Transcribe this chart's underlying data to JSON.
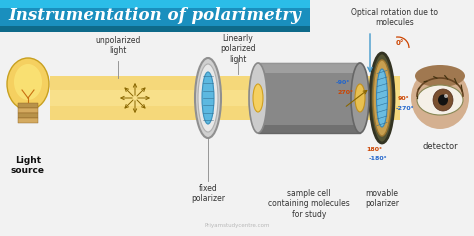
{
  "title": "Instrumentation of polarimetry",
  "title_bg_top": "#2aaad4",
  "title_bg_bot": "#1478a0",
  "title_color": "#ffffff",
  "bg_color": "#f2f2f2",
  "beam_color": "#f5d87a",
  "watermark": "Priyamstudycentre.com",
  "labels": {
    "light_source": "Light\nsource",
    "unpolarized": "unpolarized\nlight",
    "fixed_polarizer": "fixed\npolarizer",
    "linearly_polarized": "Linearly\npolarized\nlight",
    "sample_cell": "sample cell\ncontaining molecules\nfor study",
    "optical_rotation": "Optical rotation due to\nmolecules",
    "movable_polarizer": "movable\npolarizer",
    "detector": "detector"
  },
  "angles": {
    "0": {
      "text": "0°",
      "color": "#cc4400"
    },
    "-90": {
      "text": "-90°",
      "color": "#2266cc"
    },
    "270": {
      "text": "270°",
      "color": "#cc4400"
    },
    "90": {
      "text": "90°",
      "color": "#cc4400"
    },
    "-270": {
      "text": "-270°",
      "color": "#2266cc"
    },
    "180": {
      "text": "180°",
      "color": "#cc4400"
    },
    "-180": {
      "text": "-180°",
      "color": "#2266cc"
    }
  }
}
